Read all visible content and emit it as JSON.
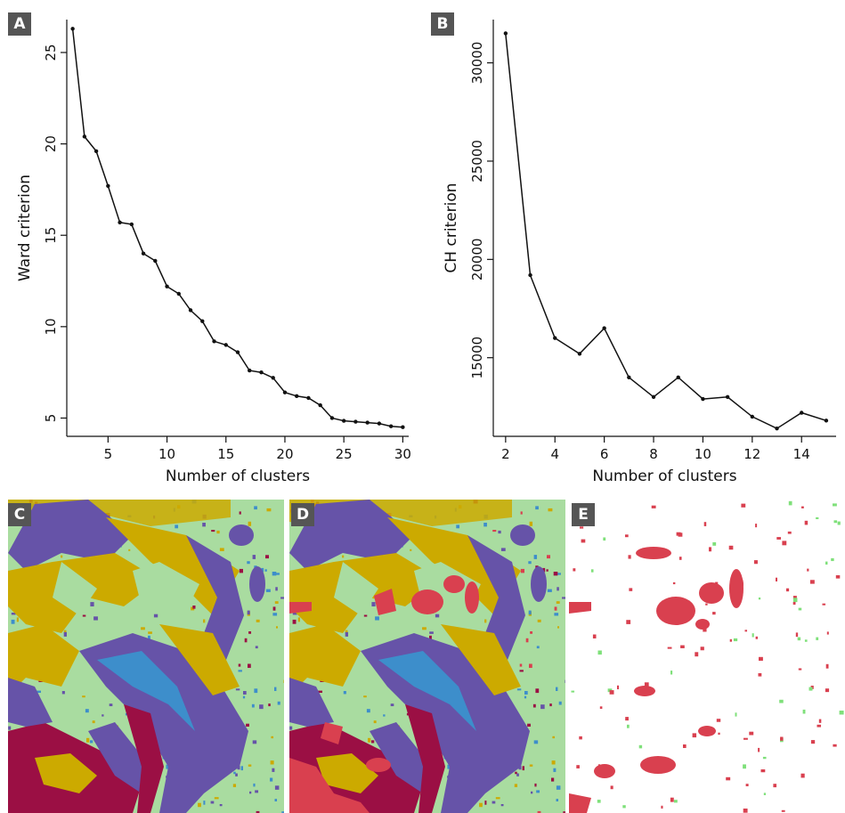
{
  "panels": [
    "A",
    "B",
    "C",
    "D",
    "E"
  ],
  "colors": {
    "line": "#111111",
    "background_green": "#a9dca0",
    "gold": "#ccaa00",
    "purple": "#6653a8",
    "blue": "#3d8ecb",
    "maroon": "#9b0f44",
    "red": "#d9404f",
    "light_green": "#7fe07a"
  },
  "chart_data": [
    {
      "type": "line",
      "xlabel": "Number of clusters",
      "ylabel": "Ward criterion",
      "xlim": [
        1.5,
        30.5
      ],
      "ylim": [
        4.0,
        26.8
      ],
      "xticks": [
        5,
        10,
        15,
        20,
        25,
        30
      ],
      "yticks": [
        5,
        10,
        15,
        20,
        25
      ],
      "x": [
        2,
        3,
        4,
        5,
        6,
        7,
        8,
        9,
        10,
        11,
        12,
        13,
        14,
        15,
        16,
        17,
        18,
        19,
        20,
        21,
        22,
        23,
        24,
        25,
        26,
        27,
        28,
        29,
        30
      ],
      "y": [
        26.3,
        20.4,
        19.6,
        17.7,
        15.7,
        15.6,
        14.0,
        13.6,
        12.2,
        11.8,
        10.9,
        10.3,
        9.2,
        9.0,
        8.6,
        7.6,
        7.5,
        7.2,
        6.4,
        6.2,
        6.1,
        5.7,
        5.0,
        4.85,
        4.8,
        4.75,
        4.7,
        4.55,
        4.5
      ]
    },
    {
      "type": "line",
      "xlabel": "Number of clusters",
      "ylabel": "CH criterion",
      "xlim": [
        1.5,
        15.4
      ],
      "ylim": [
        11000,
        32200
      ],
      "xticks": [
        2,
        4,
        6,
        8,
        10,
        12,
        14
      ],
      "yticks": [
        15000,
        20000,
        25000,
        30000
      ],
      "x": [
        2,
        3,
        4,
        5,
        6,
        7,
        8,
        9,
        10,
        11,
        12,
        13,
        14,
        15
      ],
      "y": [
        31500,
        19200,
        16000,
        15200,
        16500,
        14000,
        13000,
        14000,
        12900,
        13000,
        12000,
        11400,
        12200,
        11800
      ]
    }
  ]
}
